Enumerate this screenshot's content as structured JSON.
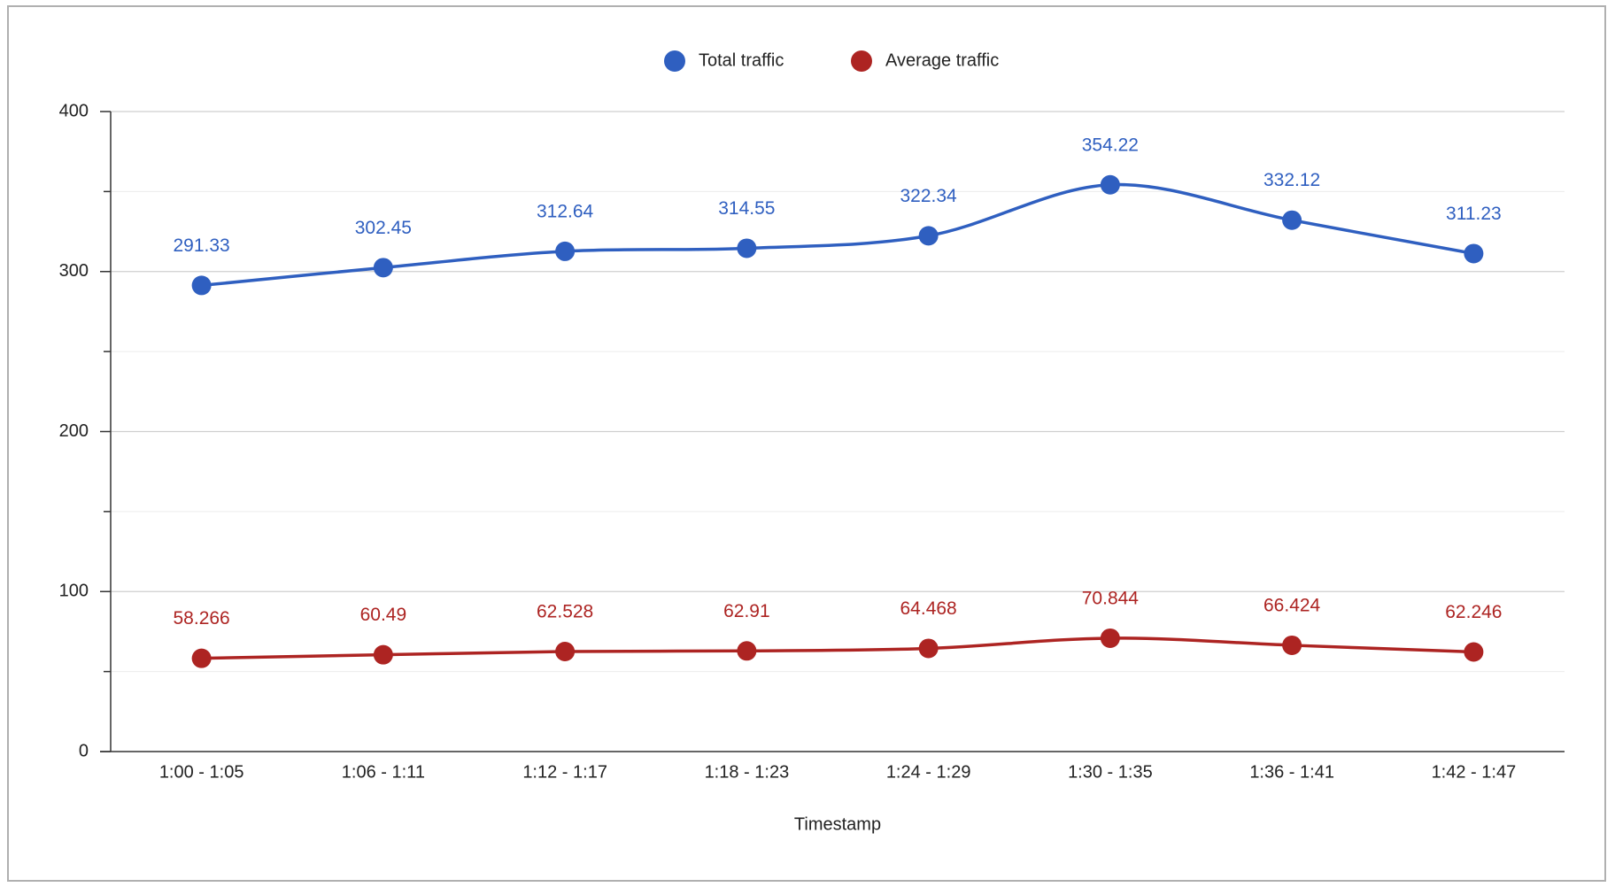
{
  "chart_data": {
    "type": "line",
    "x_label": "Timestamp",
    "categories": [
      "1:00 - 1:05",
      "1:06 - 1:11",
      "1:12 - 1:17",
      "1:18 - 1:23",
      "1:24 - 1:29",
      "1:30 - 1:35",
      "1:36 - 1:41",
      "1:42 - 1:47"
    ],
    "series": [
      {
        "name": "Total traffic",
        "color": "#2f5fc0",
        "values": [
          291.33,
          302.45,
          312.64,
          314.55,
          322.34,
          354.22,
          332.12,
          311.23
        ]
      },
      {
        "name": "Average traffic",
        "color": "#ad2422",
        "values": [
          58.266,
          60.49,
          62.528,
          62.91,
          64.468,
          70.844,
          66.424,
          62.246
        ]
      }
    ],
    "ylim": [
      0,
      400
    ],
    "yticks": [
      0,
      100,
      200,
      300,
      400
    ],
    "minor_yticks": [
      50,
      150,
      250,
      350
    ],
    "grid": true,
    "smooth": true,
    "legend": "top"
  }
}
